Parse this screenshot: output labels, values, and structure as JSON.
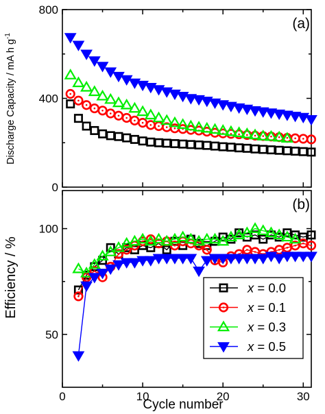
{
  "chart_data": [
    {
      "panel": "(a)",
      "type": "scatter",
      "ylabel": "Discharge Capacity / mA h g",
      "ylabel_sup": "-1",
      "xlim": [
        0,
        31
      ],
      "ylim": [
        0,
        800
      ],
      "yticks": [
        0,
        400,
        800
      ],
      "xticks": [
        0,
        10,
        20,
        30
      ],
      "grid": false,
      "series": [
        {
          "name": "x = 0.0",
          "marker": "square",
          "color": "#000000",
          "x": [
            1,
            2,
            3,
            4,
            5,
            6,
            7,
            8,
            9,
            10,
            11,
            12,
            13,
            14,
            15,
            16,
            17,
            18,
            19,
            20,
            21,
            22,
            23,
            24,
            25,
            26,
            27,
            28,
            29,
            30,
            31
          ],
          "y": [
            375,
            310,
            275,
            255,
            240,
            232,
            228,
            222,
            215,
            208,
            203,
            200,
            198,
            196,
            194,
            192,
            190,
            188,
            185,
            182,
            180,
            177,
            175,
            172,
            170,
            168,
            166,
            164,
            162,
            160,
            158
          ]
        },
        {
          "name": "x = 0.1",
          "marker": "circle",
          "color": "#ff0000",
          "x": [
            1,
            2,
            3,
            4,
            5,
            6,
            7,
            8,
            9,
            10,
            11,
            12,
            13,
            14,
            15,
            16,
            17,
            18,
            19,
            20,
            21,
            22,
            23,
            24,
            25,
            26,
            27,
            28,
            29,
            30,
            31
          ],
          "y": [
            420,
            390,
            370,
            355,
            345,
            332,
            322,
            312,
            300,
            290,
            280,
            275,
            270,
            265,
            262,
            258,
            255,
            250,
            245,
            242,
            240,
            238,
            235,
            232,
            230,
            228,
            225,
            222,
            220,
            218,
            215
          ]
        },
        {
          "name": "x = 0.3",
          "marker": "triangle-up",
          "color": "#00ee00",
          "x": [
            1,
            2,
            3,
            4,
            5,
            6,
            7,
            8,
            9,
            10,
            11,
            12,
            13,
            14,
            15,
            16,
            17,
            18,
            19,
            20,
            21,
            22,
            23,
            24,
            25,
            26,
            27,
            28
          ],
          "y": [
            505,
            470,
            450,
            430,
            410,
            395,
            380,
            370,
            355,
            340,
            325,
            312,
            300,
            290,
            282,
            275,
            270,
            265,
            260,
            255,
            250,
            245,
            240,
            235,
            230,
            228,
            225,
            220
          ]
        },
        {
          "name": "x = 0.5",
          "marker": "triangle-down",
          "color": "#0000ff",
          "x": [
            1,
            2,
            3,
            4,
            5,
            6,
            7,
            8,
            9,
            10,
            11,
            12,
            13,
            14,
            15,
            16,
            17,
            18,
            19,
            20,
            21,
            22,
            23,
            24,
            25,
            26,
            27,
            28,
            29,
            30,
            31
          ],
          "y": [
            675,
            640,
            600,
            570,
            545,
            520,
            500,
            485,
            470,
            460,
            450,
            440,
            430,
            420,
            410,
            400,
            395,
            388,
            380,
            372,
            365,
            358,
            352,
            345,
            340,
            335,
            330,
            325,
            320,
            315,
            305
          ]
        }
      ]
    },
    {
      "panel": "(b)",
      "type": "line",
      "ylabel": "Efficiency / %",
      "xlabel": "Cycle number",
      "xlim": [
        0,
        31
      ],
      "ylim": [
        25,
        118
      ],
      "yticks": [
        50,
        100
      ],
      "xticks": [
        0,
        10,
        20,
        30
      ],
      "grid": false,
      "legend_position": "bottom-right",
      "series": [
        {
          "name": "x = 0.0",
          "legend_var": "x",
          "legend_val": " = 0.0",
          "marker": "square",
          "color": "#000000",
          "x": [
            2,
            3,
            4,
            5,
            6,
            7,
            8,
            9,
            10,
            11,
            12,
            13,
            14,
            15,
            16,
            17,
            18,
            19,
            20,
            21,
            22,
            23,
            24,
            25,
            26,
            27,
            28,
            29,
            30,
            31
          ],
          "y": [
            71,
            78,
            82,
            85,
            91,
            88,
            91,
            90,
            92,
            91,
            93,
            90,
            94,
            92,
            95,
            93,
            92,
            94,
            96,
            95,
            98,
            96,
            97,
            95,
            97,
            96,
            98,
            97,
            96,
            97
          ]
        },
        {
          "name": "x = 0.1",
          "legend_var": "x",
          "legend_val": " = 0.1",
          "marker": "circle",
          "color": "#ff0000",
          "x": [
            2,
            3,
            4,
            5,
            6,
            7,
            8,
            9,
            10,
            11,
            12,
            13,
            14,
            15,
            16,
            17,
            18,
            19,
            20,
            21,
            22,
            23,
            24,
            25,
            26,
            27,
            28,
            29,
            30,
            31
          ],
          "y": [
            68,
            77,
            80,
            77,
            82,
            88,
            90,
            92,
            94,
            95,
            93,
            94,
            92,
            94,
            93,
            92,
            90,
            85,
            84,
            87,
            88,
            90,
            89,
            88,
            89,
            90,
            91,
            92,
            93,
            92
          ]
        },
        {
          "name": "x = 0.3",
          "legend_var": "x",
          "legend_val": " = 0.3",
          "marker": "triangle-up",
          "color": "#00ee00",
          "x": [
            2,
            3,
            4,
            5,
            6,
            7,
            8,
            9,
            10,
            11,
            12,
            13,
            14,
            15,
            16,
            17,
            18,
            19,
            20,
            21,
            22,
            23,
            24,
            25,
            26,
            27,
            28,
            29
          ],
          "y": [
            81,
            79,
            83,
            87,
            89,
            91,
            93,
            94,
            95,
            94,
            95,
            94,
            95,
            96,
            95,
            94,
            95,
            95,
            94,
            96,
            97,
            98,
            100,
            99,
            98,
            97,
            96,
            95
          ]
        },
        {
          "name": "x = 0.5",
          "legend_var": "x",
          "legend_val": " = 0.5",
          "marker": "triangle-down",
          "color": "#0000ff",
          "x": [
            2,
            3,
            4,
            5,
            6,
            7,
            8,
            9,
            10,
            11,
            12,
            13,
            14,
            15,
            16,
            17,
            18,
            19,
            20,
            21,
            22,
            23,
            24,
            25,
            26,
            27,
            28,
            29,
            30,
            31
          ],
          "y": [
            40,
            73,
            77,
            79,
            81,
            83,
            84,
            84,
            85,
            85,
            86,
            86,
            86,
            86,
            86,
            80,
            85,
            86,
            86,
            86,
            86,
            86,
            86,
            86,
            87,
            86,
            87,
            87,
            87,
            87
          ]
        }
      ]
    }
  ]
}
